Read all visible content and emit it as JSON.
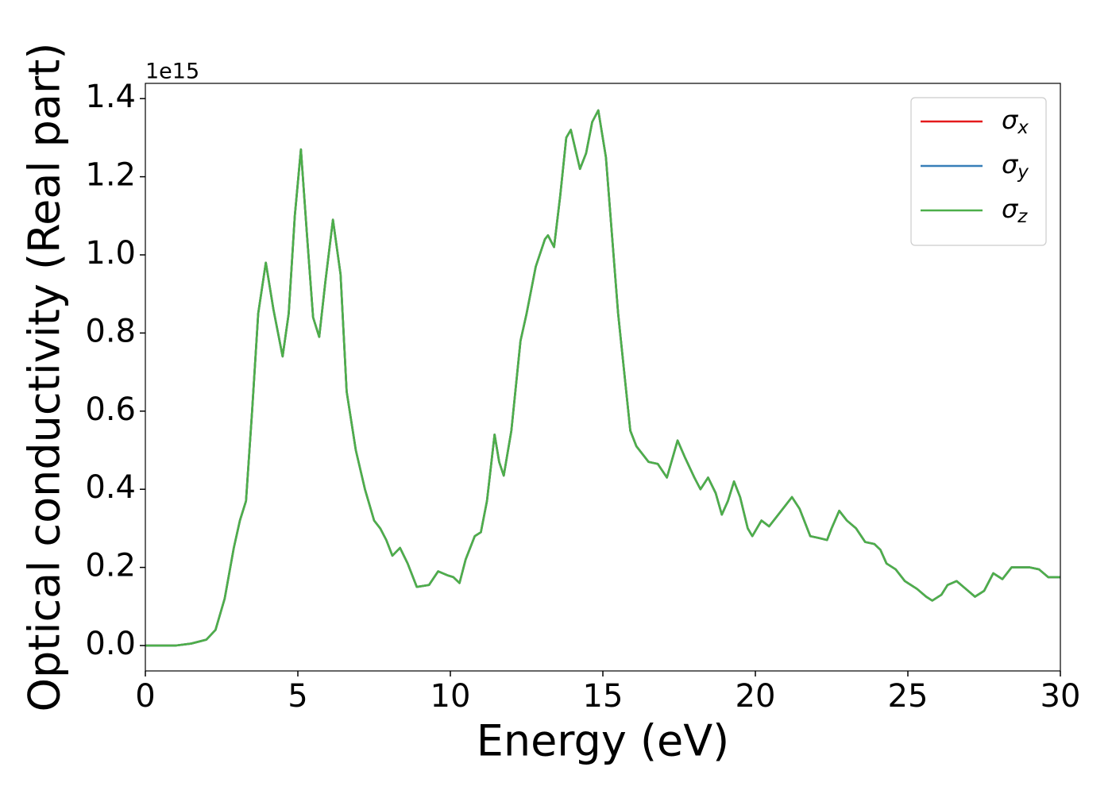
{
  "chart_data": {
    "type": "line",
    "xlabel": "Energy (eV)",
    "ylabel": "Optical conductivity (Real part)",
    "y_offset_label": "1e15",
    "x": [
      0,
      1,
      1.5,
      2,
      2.3,
      2.6,
      2.9,
      3.1,
      3.3,
      3.5,
      3.7,
      3.95,
      4.2,
      4.5,
      4.7,
      4.9,
      5.1,
      5.3,
      5.5,
      5.7,
      5.9,
      6.15,
      6.4,
      6.6,
      6.9,
      7.2,
      7.5,
      7.7,
      7.9,
      8.1,
      8.35,
      8.6,
      8.9,
      9.3,
      9.6,
      9.9,
      10.1,
      10.3,
      10.5,
      10.8,
      11.0,
      11.2,
      11.45,
      11.6,
      11.75,
      12.0,
      12.3,
      12.5,
      12.8,
      13.1,
      13.2,
      13.4,
      13.6,
      13.8,
      13.95,
      14.1,
      14.25,
      14.45,
      14.65,
      14.85,
      15.1,
      15.3,
      15.5,
      15.7,
      15.9,
      16.1,
      16.3,
      16.5,
      16.8,
      17.1,
      17.45,
      17.7,
      18.0,
      18.2,
      18.45,
      18.7,
      18.9,
      19.1,
      19.3,
      19.5,
      19.75,
      19.9,
      20.2,
      20.45,
      20.7,
      21.0,
      21.2,
      21.45,
      21.8,
      22.1,
      22.35,
      22.5,
      22.75,
      23.0,
      23.3,
      23.6,
      23.9,
      24.1,
      24.3,
      24.6,
      24.9,
      25.3,
      25.6,
      25.8,
      26.1,
      26.3,
      26.6,
      26.9,
      27.2,
      27.5,
      27.8,
      28.1,
      28.4,
      28.7,
      29.0,
      29.3,
      29.6,
      30
    ],
    "series": [
      {
        "name": "σx",
        "color": "#e41a1c",
        "values": [
          0,
          0,
          0.005,
          0.015,
          0.04,
          0.12,
          0.25,
          0.32,
          0.37,
          0.6,
          0.85,
          0.98,
          0.86,
          0.74,
          0.85,
          1.1,
          1.27,
          1.05,
          0.84,
          0.79,
          0.93,
          1.09,
          0.95,
          0.65,
          0.5,
          0.4,
          0.32,
          0.3,
          0.27,
          0.23,
          0.25,
          0.21,
          0.15,
          0.155,
          0.19,
          0.18,
          0.175,
          0.16,
          0.22,
          0.28,
          0.29,
          0.37,
          0.54,
          0.47,
          0.435,
          0.55,
          0.78,
          0.85,
          0.97,
          1.04,
          1.05,
          1.02,
          1.15,
          1.3,
          1.32,
          1.27,
          1.22,
          1.26,
          1.34,
          1.37,
          1.25,
          1.05,
          0.85,
          0.7,
          0.55,
          0.51,
          0.49,
          0.47,
          0.465,
          0.43,
          0.525,
          0.48,
          0.43,
          0.4,
          0.43,
          0.39,
          0.335,
          0.37,
          0.42,
          0.38,
          0.3,
          0.28,
          0.32,
          0.305,
          0.33,
          0.36,
          0.38,
          0.35,
          0.28,
          0.275,
          0.27,
          0.3,
          0.345,
          0.32,
          0.3,
          0.265,
          0.26,
          0.245,
          0.21,
          0.195,
          0.165,
          0.145,
          0.125,
          0.115,
          0.13,
          0.155,
          0.165,
          0.145,
          0.125,
          0.14,
          0.185,
          0.17,
          0.2,
          0.2,
          0.2,
          0.195,
          0.175,
          0.175
        ]
      },
      {
        "name": "σy",
        "color": "#377eb8",
        "values": [
          0,
          0,
          0.005,
          0.015,
          0.04,
          0.12,
          0.25,
          0.32,
          0.37,
          0.6,
          0.85,
          0.98,
          0.86,
          0.74,
          0.85,
          1.1,
          1.27,
          1.05,
          0.84,
          0.79,
          0.93,
          1.09,
          0.95,
          0.65,
          0.5,
          0.4,
          0.32,
          0.3,
          0.27,
          0.23,
          0.25,
          0.21,
          0.15,
          0.155,
          0.19,
          0.18,
          0.175,
          0.16,
          0.22,
          0.28,
          0.29,
          0.37,
          0.54,
          0.47,
          0.435,
          0.55,
          0.78,
          0.85,
          0.97,
          1.04,
          1.05,
          1.02,
          1.15,
          1.3,
          1.32,
          1.27,
          1.22,
          1.26,
          1.34,
          1.37,
          1.25,
          1.05,
          0.85,
          0.7,
          0.55,
          0.51,
          0.49,
          0.47,
          0.465,
          0.43,
          0.525,
          0.48,
          0.43,
          0.4,
          0.43,
          0.39,
          0.335,
          0.37,
          0.42,
          0.38,
          0.3,
          0.28,
          0.32,
          0.305,
          0.33,
          0.36,
          0.38,
          0.35,
          0.28,
          0.275,
          0.27,
          0.3,
          0.345,
          0.32,
          0.3,
          0.265,
          0.26,
          0.245,
          0.21,
          0.195,
          0.165,
          0.145,
          0.125,
          0.115,
          0.13,
          0.155,
          0.165,
          0.145,
          0.125,
          0.14,
          0.185,
          0.17,
          0.2,
          0.2,
          0.2,
          0.195,
          0.175,
          0.175
        ]
      },
      {
        "name": "σz",
        "color": "#4daf4a",
        "values": [
          0,
          0,
          0.005,
          0.015,
          0.04,
          0.12,
          0.25,
          0.32,
          0.37,
          0.6,
          0.85,
          0.98,
          0.86,
          0.74,
          0.85,
          1.1,
          1.27,
          1.05,
          0.84,
          0.79,
          0.93,
          1.09,
          0.95,
          0.65,
          0.5,
          0.4,
          0.32,
          0.3,
          0.27,
          0.23,
          0.25,
          0.21,
          0.15,
          0.155,
          0.19,
          0.18,
          0.175,
          0.16,
          0.22,
          0.28,
          0.29,
          0.37,
          0.54,
          0.47,
          0.435,
          0.55,
          0.78,
          0.85,
          0.97,
          1.04,
          1.05,
          1.02,
          1.15,
          1.3,
          1.32,
          1.27,
          1.22,
          1.26,
          1.34,
          1.37,
          1.25,
          1.05,
          0.85,
          0.7,
          0.55,
          0.51,
          0.49,
          0.47,
          0.465,
          0.43,
          0.525,
          0.48,
          0.43,
          0.4,
          0.43,
          0.39,
          0.335,
          0.37,
          0.42,
          0.38,
          0.3,
          0.28,
          0.32,
          0.305,
          0.33,
          0.36,
          0.38,
          0.35,
          0.28,
          0.275,
          0.27,
          0.3,
          0.345,
          0.32,
          0.3,
          0.265,
          0.26,
          0.245,
          0.21,
          0.195,
          0.165,
          0.145,
          0.125,
          0.115,
          0.13,
          0.155,
          0.165,
          0.145,
          0.125,
          0.14,
          0.185,
          0.17,
          0.2,
          0.2,
          0.2,
          0.195,
          0.175,
          0.175
        ]
      }
    ],
    "xlim": [
      0,
      30
    ],
    "xticks": [
      0,
      5,
      10,
      15,
      20,
      25,
      30
    ],
    "ylim": [
      -0.065,
      1.439
    ],
    "yticks": [
      {
        "value": 0,
        "label": "0.0"
      },
      0.2,
      0.4,
      0.6,
      0.8,
      {
        "value": 1,
        "label": "1.0"
      },
      1.2,
      1.4
    ],
    "grid": false,
    "legend": "upper right"
  }
}
